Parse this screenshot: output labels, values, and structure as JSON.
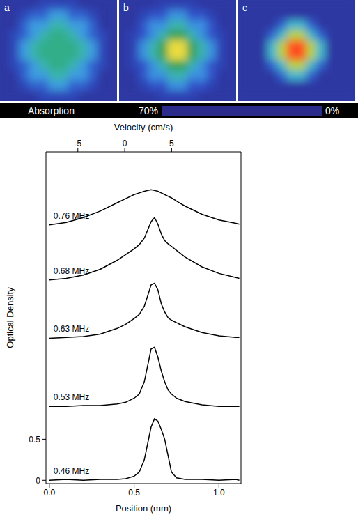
{
  "panels": [
    {
      "label": "a",
      "cells": [
        [
          3,
          3,
          3,
          3,
          6,
          6,
          6,
          6,
          3,
          3,
          3,
          3
        ],
        [
          3,
          3,
          6,
          10,
          10,
          18,
          18,
          10,
          10,
          6,
          3,
          3
        ],
        [
          3,
          3,
          10,
          18,
          18,
          28,
          28,
          18,
          18,
          10,
          3,
          3
        ],
        [
          3,
          6,
          10,
          18,
          28,
          32,
          32,
          28,
          18,
          10,
          6,
          3
        ],
        [
          3,
          6,
          18,
          28,
          32,
          32,
          32,
          32,
          28,
          18,
          6,
          3
        ],
        [
          3,
          6,
          18,
          28,
          32,
          32,
          32,
          32,
          28,
          18,
          6,
          3
        ],
        [
          3,
          6,
          10,
          18,
          28,
          32,
          32,
          28,
          18,
          10,
          6,
          3
        ],
        [
          3,
          3,
          10,
          18,
          18,
          28,
          28,
          18,
          18,
          10,
          3,
          3
        ],
        [
          3,
          3,
          6,
          10,
          10,
          18,
          18,
          10,
          10,
          6,
          3,
          3
        ],
        [
          3,
          3,
          3,
          3,
          6,
          6,
          6,
          6,
          3,
          3,
          3,
          3
        ]
      ]
    },
    {
      "label": "b",
      "cells": [
        [
          3,
          3,
          3,
          3,
          5,
          5,
          5,
          5,
          3,
          3,
          3,
          3
        ],
        [
          3,
          3,
          5,
          8,
          8,
          16,
          16,
          8,
          8,
          5,
          3,
          3
        ],
        [
          3,
          3,
          8,
          16,
          16,
          28,
          28,
          16,
          16,
          8,
          3,
          3
        ],
        [
          3,
          5,
          8,
          16,
          28,
          38,
          38,
          28,
          16,
          8,
          5,
          3
        ],
        [
          3,
          5,
          16,
          28,
          38,
          55,
          55,
          38,
          28,
          16,
          5,
          3
        ],
        [
          3,
          5,
          16,
          28,
          38,
          55,
          55,
          38,
          28,
          16,
          5,
          3
        ],
        [
          3,
          5,
          8,
          16,
          28,
          38,
          38,
          28,
          16,
          8,
          5,
          3
        ],
        [
          3,
          3,
          8,
          16,
          16,
          28,
          28,
          16,
          16,
          8,
          3,
          3
        ],
        [
          3,
          3,
          5,
          8,
          8,
          16,
          16,
          8,
          8,
          5,
          3,
          3
        ],
        [
          3,
          3,
          3,
          3,
          5,
          5,
          5,
          5,
          3,
          3,
          3,
          3
        ]
      ]
    },
    {
      "label": "c",
      "cells": [
        [
          3,
          3,
          3,
          3,
          3,
          3,
          3,
          3,
          3,
          3,
          3,
          3
        ],
        [
          3,
          3,
          3,
          3,
          3,
          3,
          3,
          3,
          3,
          3,
          3,
          3
        ],
        [
          3,
          3,
          3,
          3,
          10,
          25,
          25,
          10,
          3,
          3,
          3,
          3
        ],
        [
          3,
          3,
          3,
          10,
          25,
          50,
          50,
          25,
          10,
          3,
          3,
          3
        ],
        [
          3,
          3,
          3,
          25,
          50,
          68,
          68,
          50,
          25,
          3,
          3,
          3
        ],
        [
          3,
          3,
          3,
          25,
          50,
          68,
          68,
          50,
          25,
          3,
          3,
          3
        ],
        [
          3,
          3,
          3,
          10,
          25,
          50,
          50,
          25,
          10,
          3,
          3,
          3
        ],
        [
          3,
          3,
          3,
          3,
          10,
          25,
          25,
          10,
          3,
          3,
          3,
          3
        ],
        [
          3,
          3,
          3,
          3,
          3,
          3,
          3,
          3,
          3,
          3,
          3,
          3
        ],
        [
          3,
          3,
          3,
          3,
          3,
          3,
          3,
          3,
          3,
          3,
          3,
          3
        ]
      ]
    }
  ],
  "colorbar": {
    "label": "Absorption",
    "range": [
      0,
      70
    ],
    "ticks": [
      {
        "value": 70,
        "label": "70%"
      },
      {
        "value": 0,
        "label": "0%"
      }
    ],
    "colors": [
      "#2b2b8c",
      "#3050c8",
      "#3a8ee0",
      "#48b8e0",
      "#30b090",
      "#3aa050",
      "#90c840",
      "#e8e040",
      "#ffa030",
      "#ff3020"
    ]
  },
  "chart_data": {
    "type": "line",
    "xlabel": "Position (mm)",
    "ylabel": "Optical Density",
    "x2label": "Velocity (cm/s)",
    "x": [
      0,
      0.1,
      0.2,
      0.3,
      0.4,
      0.45,
      0.5,
      0.53,
      0.56,
      0.58,
      0.6,
      0.62,
      0.64,
      0.66,
      0.68,
      0.7,
      0.72,
      0.75,
      0.8,
      0.9,
      1.0,
      1.1,
      1.12
    ],
    "xlim": [
      -0.02,
      1.13
    ],
    "xticks": [
      {
        "value": 0,
        "label": "0.0"
      },
      0.5,
      {
        "value": 1,
        "label": "1.0"
      }
    ],
    "x2lim": [
      -8.4,
      12.4
    ],
    "x2ticks": [
      -5,
      0,
      5
    ],
    "ylim": [
      -0.04,
      4.0
    ],
    "yticks": [
      0,
      0.5
    ],
    "grid": false,
    "series": [
      {
        "name": "0.76 MHz",
        "color": "#000000",
        "values": [
          3.11,
          3.14,
          3.2,
          3.28,
          3.38,
          3.43,
          3.48,
          3.5,
          3.52,
          3.53,
          3.54,
          3.53,
          3.52,
          3.5,
          3.48,
          3.46,
          3.44,
          3.4,
          3.34,
          3.24,
          3.17,
          3.13,
          3.12
        ]
      },
      {
        "name": "0.68 MHz",
        "color": "#000000",
        "values": [
          2.44,
          2.46,
          2.5,
          2.57,
          2.68,
          2.75,
          2.82,
          2.87,
          2.95,
          3.05,
          3.15,
          3.2,
          3.12,
          3.0,
          2.92,
          2.88,
          2.85,
          2.8,
          2.72,
          2.6,
          2.52,
          2.47,
          2.46
        ]
      },
      {
        "name": "0.63 MHz",
        "color": "#000000",
        "values": [
          1.73,
          1.74,
          1.75,
          1.78,
          1.85,
          1.9,
          1.97,
          2.02,
          2.12,
          2.25,
          2.38,
          2.4,
          2.32,
          2.15,
          2.05,
          1.98,
          1.95,
          1.92,
          1.87,
          1.8,
          1.76,
          1.74,
          1.74
        ]
      },
      {
        "name": "0.53 MHz",
        "color": "#000000",
        "values": [
          0.9,
          0.9,
          0.91,
          0.91,
          0.93,
          0.95,
          1.0,
          1.05,
          1.2,
          1.4,
          1.6,
          1.62,
          1.5,
          1.33,
          1.2,
          1.1,
          1.05,
          1.0,
          0.96,
          0.92,
          0.9,
          0.9,
          0.9
        ]
      },
      {
        "name": "0.46 MHz",
        "color": "#000000",
        "values": [
          0.0,
          0.01,
          0.0,
          0.01,
          0.01,
          0.02,
          0.05,
          0.1,
          0.25,
          0.45,
          0.65,
          0.75,
          0.72,
          0.62,
          0.5,
          0.3,
          0.1,
          0.03,
          0.01,
          0.01,
          0.0,
          0.01,
          0.0
        ]
      }
    ]
  }
}
